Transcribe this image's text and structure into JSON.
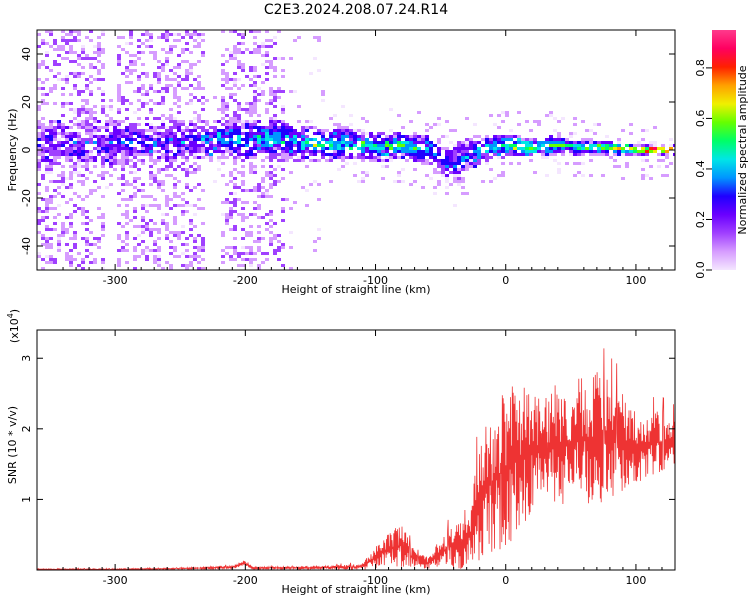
{
  "title": "C2E3.2024.208.07.24.R14",
  "chart_data": [
    {
      "type": "heatmap",
      "title": "C2E3.2024.208.07.24.R14",
      "xlabel": "Height of straight line (km)",
      "ylabel": "Frequency (Hz)",
      "xlim": [
        -360,
        130
      ],
      "ylim": [
        -50,
        50
      ],
      "x_ticks": [
        -300,
        -200,
        -100,
        0,
        100
      ],
      "y_ticks": [
        -40,
        -20,
        0,
        20,
        40
      ],
      "x_tick_labels": [
        "-300",
        "-200",
        "-100",
        "0",
        "100"
      ],
      "y_tick_labels": [
        "-40",
        "-20",
        "0",
        "20",
        "40"
      ],
      "colorbar": {
        "label": "Normalized spectral amplitude",
        "range": [
          0,
          0.95
        ],
        "ticks": [
          0.0,
          0.2,
          0.4,
          0.6,
          0.8
        ],
        "tick_labels": [
          "0.0",
          "0.2",
          "0.4",
          "0.6",
          "0.8"
        ],
        "colors": [
          "#f4e6ff",
          "#d69cff",
          "#a040ff",
          "#6a00ff",
          "#1f00ff",
          "#0096ff",
          "#00e6e6",
          "#00ff66",
          "#66ff00",
          "#f0f000",
          "#ffa000",
          "#ff2000",
          "#ff0060",
          "#ff3a8c"
        ]
      },
      "ridge": {
        "x": [
          -320,
          -300,
          -280,
          -260,
          -240,
          -220,
          -200,
          -180,
          -160,
          -140,
          -120,
          -100,
          -80,
          -60,
          -50,
          -40,
          -30,
          -20,
          -10,
          0,
          20,
          40,
          60,
          80,
          100,
          120,
          130
        ],
        "frequency": [
          2,
          3,
          4,
          3,
          4,
          5,
          4,
          5,
          3,
          2,
          3,
          1,
          2,
          0,
          -3,
          -6,
          -2,
          0,
          1,
          2,
          1,
          2,
          1,
          1,
          0,
          0,
          0
        ],
        "amplitude": [
          0.15,
          0.2,
          0.25,
          0.2,
          0.25,
          0.3,
          0.3,
          0.35,
          0.35,
          0.4,
          0.4,
          0.35,
          0.45,
          0.35,
          0.3,
          0.25,
          0.3,
          0.35,
          0.4,
          0.45,
          0.5,
          0.5,
          0.5,
          0.6,
          0.8,
          0.85,
          0.9
        ],
        "width_hz": [
          10,
          10,
          8,
          8,
          8,
          8,
          8,
          9,
          8,
          7,
          7,
          6,
          6,
          6,
          7,
          8,
          7,
          6,
          5,
          5,
          4,
          4,
          3,
          3,
          2,
          2,
          2
        ]
      }
    },
    {
      "type": "line",
      "xlabel": "Height of straight line (km)",
      "ylabel": "SNR (10 * v/v)",
      "y_unit_label": "(x10",
      "y_unit_exponent": "4",
      "y_unit_suffix": ")",
      "xlim": [
        -360,
        130
      ],
      "ylim": [
        0,
        3.4
      ],
      "x_ticks": [
        -300,
        -200,
        -100,
        0,
        100
      ],
      "y_ticks": [
        1,
        2,
        3
      ],
      "x_tick_labels": [
        "-300",
        "-200",
        "-100",
        "0",
        "100"
      ],
      "y_tick_labels": [
        "1",
        "2",
        "3"
      ],
      "series": [
        {
          "color": "#ee3333",
          "x": [
            -360,
            -300,
            -250,
            -210,
            -200,
            -195,
            -150,
            -110,
            -100,
            -90,
            -80,
            -70,
            -60,
            -45,
            -30,
            -25,
            -20,
            -10,
            0,
            10,
            20,
            30,
            40,
            50,
            60,
            70,
            80,
            90,
            100,
            110,
            120,
            130
          ],
          "center": [
            0.01,
            0.01,
            0.02,
            0.04,
            0.1,
            0.03,
            0.03,
            0.05,
            0.18,
            0.3,
            0.35,
            0.15,
            0.1,
            0.3,
            0.45,
            0.6,
            1.0,
            1.25,
            1.45,
            1.6,
            1.7,
            1.75,
            1.8,
            1.8,
            1.85,
            1.85,
            1.85,
            1.8,
            1.75,
            1.8,
            1.8,
            1.75
          ],
          "spread": [
            0.01,
            0.01,
            0.01,
            0.03,
            0.06,
            0.02,
            0.02,
            0.05,
            0.18,
            0.25,
            0.35,
            0.12,
            0.1,
            0.3,
            0.5,
            0.6,
            1.0,
            1.1,
            1.3,
            1.2,
            1.0,
            0.9,
            1.0,
            1.0,
            1.05,
            1.1,
            0.9,
            0.8,
            0.6,
            0.5,
            0.5,
            0.45
          ]
        }
      ]
    }
  ]
}
